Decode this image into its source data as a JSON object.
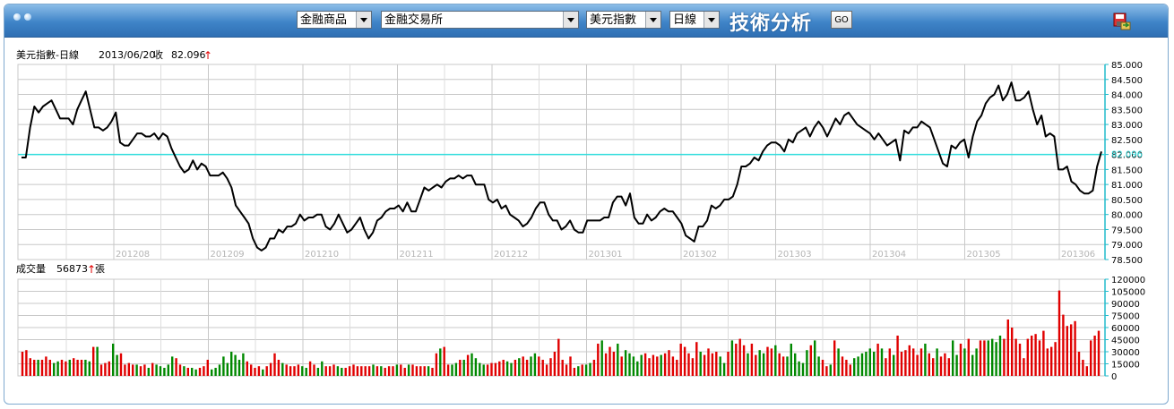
{
  "toolbar": {
    "product_select": "金融商品",
    "exchange_select": "金融交易所",
    "index_select": "美元指數",
    "period_select": "日線",
    "page_title": "技術分析",
    "go_label": "GO",
    "save_icon": "save-export-icon"
  },
  "price_header": {
    "name": "美元指數-日線",
    "date": "2013/06/20",
    "close_label": "收",
    "close_value": "82.096",
    "trend": "↑"
  },
  "volume_header": {
    "label": "成交量",
    "value": "56873",
    "trend": "↑",
    "unit": "張"
  },
  "colors": {
    "titlebar": "#3f84c8",
    "grid": "#c8c8c8",
    "line": "#000000",
    "ref_line": "#33dddd",
    "volume_up": "#e00000",
    "volume_down": "#008800",
    "trend_arrow": "#e00000"
  },
  "chart_data": [
    {
      "type": "line",
      "ylim": [
        78.5,
        85.0
      ],
      "y_ticks": [
        "85.000",
        "84.500",
        "84.000",
        "83.500",
        "83.000",
        "82.500",
        "82.000",
        "81.500",
        "81.000",
        "80.500",
        "80.000",
        "79.500",
        "79.000",
        "78.500"
      ],
      "x_ticks": [
        "201208",
        "201209",
        "201210",
        "201211",
        "201212",
        "201301",
        "201302",
        "201303",
        "201304",
        "201305",
        "201306"
      ],
      "reference": {
        "value": 82.0,
        "label": "82.096"
      },
      "series": [
        {
          "values": [
            81.9,
            81.9,
            82.9,
            83.6,
            83.4,
            83.6,
            83.7,
            83.8,
            83.5,
            83.2,
            83.2,
            83.2,
            83.0,
            83.5,
            83.8,
            84.1,
            83.5,
            82.9,
            82.9,
            82.8,
            82.9,
            83.1,
            83.4,
            82.4,
            82.3,
            82.3,
            82.5,
            82.7,
            82.7,
            82.6,
            82.6,
            82.7,
            82.5,
            82.7,
            82.6,
            82.2,
            81.9,
            81.6,
            81.4,
            81.5,
            81.8,
            81.5,
            81.7,
            81.6,
            81.3,
            81.3,
            81.3,
            81.4,
            81.2,
            80.9,
            80.3,
            80.1,
            79.9,
            79.7,
            79.2,
            78.9,
            78.8,
            78.9,
            79.2,
            79.2,
            79.5,
            79.4,
            79.6,
            79.6,
            79.7,
            80.0,
            79.8,
            79.9,
            79.9,
            80.0,
            80.0,
            79.6,
            79.5,
            79.7,
            80.0,
            79.7,
            79.4,
            79.5,
            79.7,
            79.9,
            79.5,
            79.2,
            79.4,
            79.8,
            79.9,
            80.1,
            80.2,
            80.2,
            80.3,
            80.1,
            80.4,
            80.1,
            80.1,
            80.5,
            80.9,
            80.8,
            80.9,
            81.0,
            80.9,
            81.1,
            81.2,
            81.2,
            81.3,
            81.2,
            81.3,
            81.3,
            81.0,
            81.0,
            81.0,
            80.5,
            80.4,
            80.5,
            80.2,
            80.3,
            80.0,
            79.9,
            79.8,
            79.6,
            79.7,
            79.9,
            80.2,
            80.4,
            80.4,
            80.0,
            79.8,
            79.8,
            79.5,
            79.6,
            79.8,
            79.5,
            79.4,
            79.4,
            79.8,
            79.8,
            79.8,
            79.8,
            79.9,
            79.9,
            80.4,
            80.6,
            80.6,
            80.3,
            80.7,
            79.9,
            79.7,
            79.7,
            80.0,
            79.8,
            79.9,
            80.1,
            80.2,
            80.1,
            80.1,
            79.9,
            79.7,
            79.3,
            79.2,
            79.1,
            79.6,
            79.6,
            79.8,
            80.3,
            80.2,
            80.3,
            80.5,
            80.5,
            80.6,
            81.0,
            81.6,
            81.6,
            81.7,
            81.9,
            81.8,
            82.1,
            82.3,
            82.4,
            82.4,
            82.3,
            82.1,
            82.5,
            82.4,
            82.7,
            82.8,
            82.9,
            82.6,
            82.9,
            83.1,
            82.9,
            82.6,
            82.9,
            83.2,
            83.0,
            83.3,
            83.4,
            83.2,
            83.0,
            82.9,
            82.8,
            82.7,
            82.5,
            82.7,
            82.5,
            82.3,
            82.4,
            82.5,
            81.8,
            82.8,
            82.7,
            82.9,
            82.9,
            83.1,
            83.0,
            82.9,
            82.5,
            82.1,
            81.7,
            81.6,
            82.3,
            82.2,
            82.4,
            82.5,
            81.9,
            82.6,
            83.1,
            83.3,
            83.7,
            83.9,
            84.0,
            84.3,
            83.8,
            84.0,
            84.4,
            83.8,
            83.8,
            83.9,
            84.1,
            83.5,
            83.0,
            83.3,
            82.6,
            82.7,
            82.6,
            81.5,
            81.5,
            81.6,
            81.1,
            81.0,
            80.8,
            80.7,
            80.7,
            80.8,
            81.6,
            82.1
          ]
        }
      ]
    },
    {
      "type": "bar",
      "ylim": [
        0,
        120000
      ],
      "y_ticks": [
        "120000",
        "105000",
        "90000",
        "75000",
        "60000",
        "45000",
        "30000",
        "15000",
        "0"
      ],
      "series": [
        {
          "values": [
            30000,
            32000,
            22000,
            20000,
            20000,
            20000,
            24000,
            20000,
            16000,
            18000,
            20000,
            18000,
            20000,
            22000,
            20000,
            20000,
            20000,
            18000,
            36000,
            36000,
            14000,
            16000,
            18000,
            40000,
            26000,
            28000,
            14000,
            16000,
            14000,
            14000,
            12000,
            14000,
            10000,
            16000,
            14000,
            12000,
            10000,
            14000,
            24000,
            22000,
            14000,
            12000,
            10000,
            10000,
            8000,
            10000,
            12000,
            20000,
            8000,
            10000,
            14000,
            24000,
            16000,
            30000,
            26000,
            20000,
            28000,
            18000,
            14000,
            10000,
            12000,
            8000,
            12000,
            16000,
            28000,
            20000,
            16000,
            14000,
            12000,
            12000,
            14000,
            12000,
            10000,
            18000,
            14000,
            10000,
            18000,
            12000,
            12000,
            14000,
            12000,
            10000,
            10000,
            12000,
            14000,
            12000,
            12000,
            12000,
            12000,
            14000,
            12000,
            12000,
            10000,
            12000,
            12000,
            14000,
            14000,
            10000,
            14000,
            14000,
            12000,
            12000,
            12000,
            12000,
            10000,
            28000,
            34000,
            36000,
            14000,
            14000,
            16000,
            20000,
            20000,
            26000,
            28000,
            22000,
            16000,
            14000,
            14000,
            16000,
            16000,
            18000,
            20000,
            18000,
            16000,
            20000,
            22000,
            24000,
            20000,
            24000,
            28000,
            24000,
            20000,
            14000,
            22000,
            30000,
            46000,
            20000,
            14000,
            24000,
            10000,
            12000,
            14000,
            14000,
            16000,
            20000,
            40000,
            44000,
            28000,
            36000,
            30000,
            40000,
            24000,
            32000,
            28000,
            24000,
            18000,
            26000,
            28000,
            22000,
            26000,
            24000,
            26000,
            28000,
            32000,
            24000,
            20000,
            40000,
            36000,
            28000,
            22000,
            42000,
            30000,
            26000,
            34000,
            28000,
            30000,
            24000,
            16000,
            30000,
            44000,
            40000,
            46000,
            38000,
            28000,
            40000,
            26000,
            32000,
            28000,
            36000,
            34000,
            38000,
            28000,
            24000,
            24000,
            40000,
            28000,
            18000,
            16000,
            32000,
            38000,
            44000,
            24000,
            20000,
            12000,
            14000,
            44000,
            34000,
            24000,
            20000,
            14000,
            22000,
            24000,
            28000,
            30000,
            34000,
            30000,
            40000,
            34000,
            22000,
            34000,
            26000,
            50000,
            30000,
            32000,
            38000,
            34000,
            26000,
            34000,
            40000,
            28000,
            22000,
            34000,
            24000,
            28000,
            22000,
            44000,
            26000,
            40000,
            34000,
            46000,
            26000,
            34000,
            44000,
            44000,
            44000,
            46000,
            42000,
            50000,
            46000,
            70000,
            60000,
            46000,
            40000,
            22000,
            46000,
            50000,
            52000,
            44000,
            56000,
            34000,
            36000,
            42000,
            106000,
            76000,
            62000,
            64000,
            68000,
            30000,
            20000,
            12000,
            44000,
            50000,
            56000
          ]
        }
      ]
    }
  ]
}
